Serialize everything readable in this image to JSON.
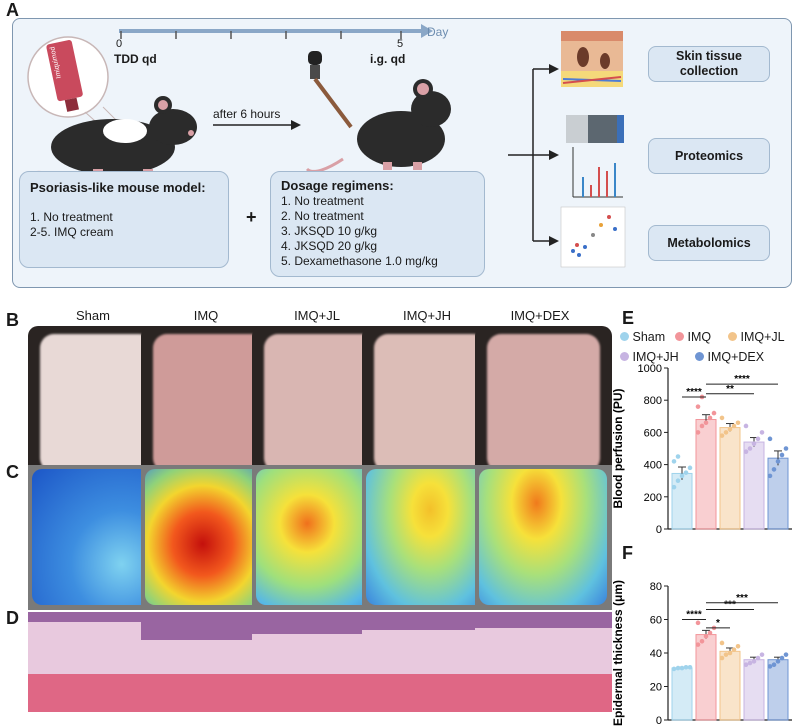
{
  "panels": {
    "A": "A",
    "B": "B",
    "C": "C",
    "D": "D",
    "E": "E",
    "F": "F"
  },
  "schematic": {
    "timeline": {
      "start": "0",
      "end": "5",
      "unit": "Day"
    },
    "tube_label": "Imiquimod",
    "tdd_label": "TDD qd",
    "ig_label": "i.g. qd",
    "arrow_label": "after 6 hours",
    "plus": "+",
    "model_box": {
      "title": "Psoriasis-like mouse model:",
      "items": [
        "1. No treatment",
        "2-5. IMQ cream"
      ]
    },
    "dosage_box": {
      "title": "Dosage regimens:",
      "items": [
        "1.  No treatment",
        "2.  No treatment",
        "3.  JKSQD 10 g/kg",
        "4.  JKSQD 20 g/kg",
        "5.  Dexamethasone 1.0 mg/kg"
      ]
    },
    "methods": [
      "Skin tissue collection",
      "Proteomics",
      "Metabolomics"
    ]
  },
  "groups": [
    "Sham",
    "IMQ",
    "IMQ+JL",
    "IMQ+JH",
    "IMQ+DEX"
  ],
  "colors": {
    "sham": "#9fd3ec",
    "imq": "#f2959a",
    "jl": "#f2c48a",
    "jh": "#c7b4e2",
    "dex": "#6f95d3"
  },
  "chart_data": [
    {
      "type": "bar",
      "panel": "E",
      "categories": [
        "Sham",
        "IMQ",
        "IMQ+JL",
        "IMQ+JH",
        "IMQ+DEX"
      ],
      "values": [
        345,
        680,
        630,
        540,
        440
      ],
      "errors": [
        40,
        30,
        25,
        28,
        45
      ],
      "points": [
        [
          260,
          300,
          330,
          350,
          380,
          420,
          450
        ],
        [
          600,
          640,
          660,
          690,
          720,
          760,
          820
        ],
        [
          580,
          600,
          620,
          640,
          660,
          690
        ],
        [
          480,
          500,
          530,
          560,
          600,
          640
        ],
        [
          330,
          370,
          420,
          460,
          500,
          560
        ]
      ],
      "ylabel": "Blood perfusion (PU)",
      "yticks": [
        "0",
        "200",
        "400",
        "600",
        "800",
        "1000"
      ],
      "ylim": [
        0,
        1000
      ],
      "legend": [
        "Sham",
        "IMQ",
        "IMQ+JL",
        "IMQ+JH",
        "IMQ+DEX"
      ],
      "significance": [
        "****",
        "**",
        "****"
      ]
    },
    {
      "type": "bar",
      "panel": "F",
      "categories": [
        "Sham",
        "IMQ",
        "IMQ+JL",
        "IMQ+JH",
        "IMQ+DEX"
      ],
      "values": [
        31,
        51,
        41,
        36,
        36
      ],
      "errors": [
        0.5,
        2.5,
        2,
        1.5,
        1.5
      ],
      "points": [
        [
          30.5,
          31,
          31,
          31.5,
          31.5
        ],
        [
          45,
          47,
          50,
          52,
          55,
          58
        ],
        [
          37,
          39,
          40,
          42,
          44,
          46
        ],
        [
          33,
          34,
          35,
          37,
          39
        ],
        [
          32,
          33,
          35,
          37,
          39
        ]
      ],
      "ylabel": "Epidermal thickness (μm)",
      "yticks": [
        "0",
        "20",
        "40",
        "60",
        "80"
      ],
      "ylim": [
        0,
        80
      ],
      "significance": [
        "****",
        "*",
        "***",
        "***"
      ]
    }
  ]
}
